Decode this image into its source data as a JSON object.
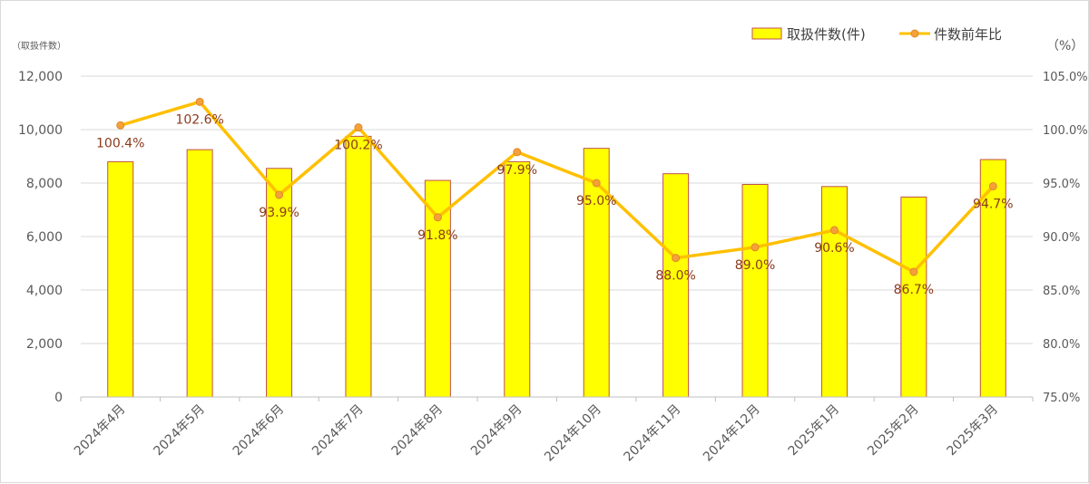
{
  "chart_data": {
    "type": "bar",
    "categories": [
      "2024年4月",
      "2024年5月",
      "2024年6月",
      "2024年7月",
      "2024年8月",
      "2024年9月",
      "2024年10月",
      "2024年11月",
      "2024年12月",
      "2025年1月",
      "2025年2月",
      "2025年3月"
    ],
    "series": [
      {
        "name": "取扱件数(件)",
        "type": "bar",
        "axis": "left",
        "values": [
          8800,
          9250,
          8550,
          9750,
          8100,
          8800,
          9300,
          8350,
          7950,
          7870,
          7480,
          8880
        ],
        "fill": "#ffff00",
        "stroke": "#c0504d"
      },
      {
        "name": "件数前年比",
        "type": "line",
        "axis": "right",
        "values": [
          100.4,
          102.6,
          93.9,
          100.2,
          91.8,
          97.9,
          95.0,
          88.0,
          89.0,
          90.6,
          86.7,
          94.7
        ],
        "labels": [
          "100.4%",
          "102.6%",
          "93.9%",
          "100.2%",
          "91.8%",
          "97.9%",
          "95.0%",
          "88.0%",
          "89.0%",
          "90.6%",
          "86.7%",
          "94.7%"
        ],
        "line_color": "#ffc000",
        "marker_color": "#f4a13a"
      }
    ],
    "y_left": {
      "unit_label": "（取扱件数）",
      "range": [
        0,
        12000
      ],
      "ticks": [
        "0",
        "2,000",
        "4,000",
        "6,000",
        "8,000",
        "10,000",
        "12,000"
      ]
    },
    "y_right": {
      "unit_label": "（%）",
      "range": [
        75,
        105
      ],
      "ticks": [
        "75.0%",
        "80.0%",
        "85.0%",
        "90.0%",
        "95.0%",
        "100.0%",
        "105.0%"
      ]
    },
    "grid": true,
    "legend_position": "top-right"
  }
}
